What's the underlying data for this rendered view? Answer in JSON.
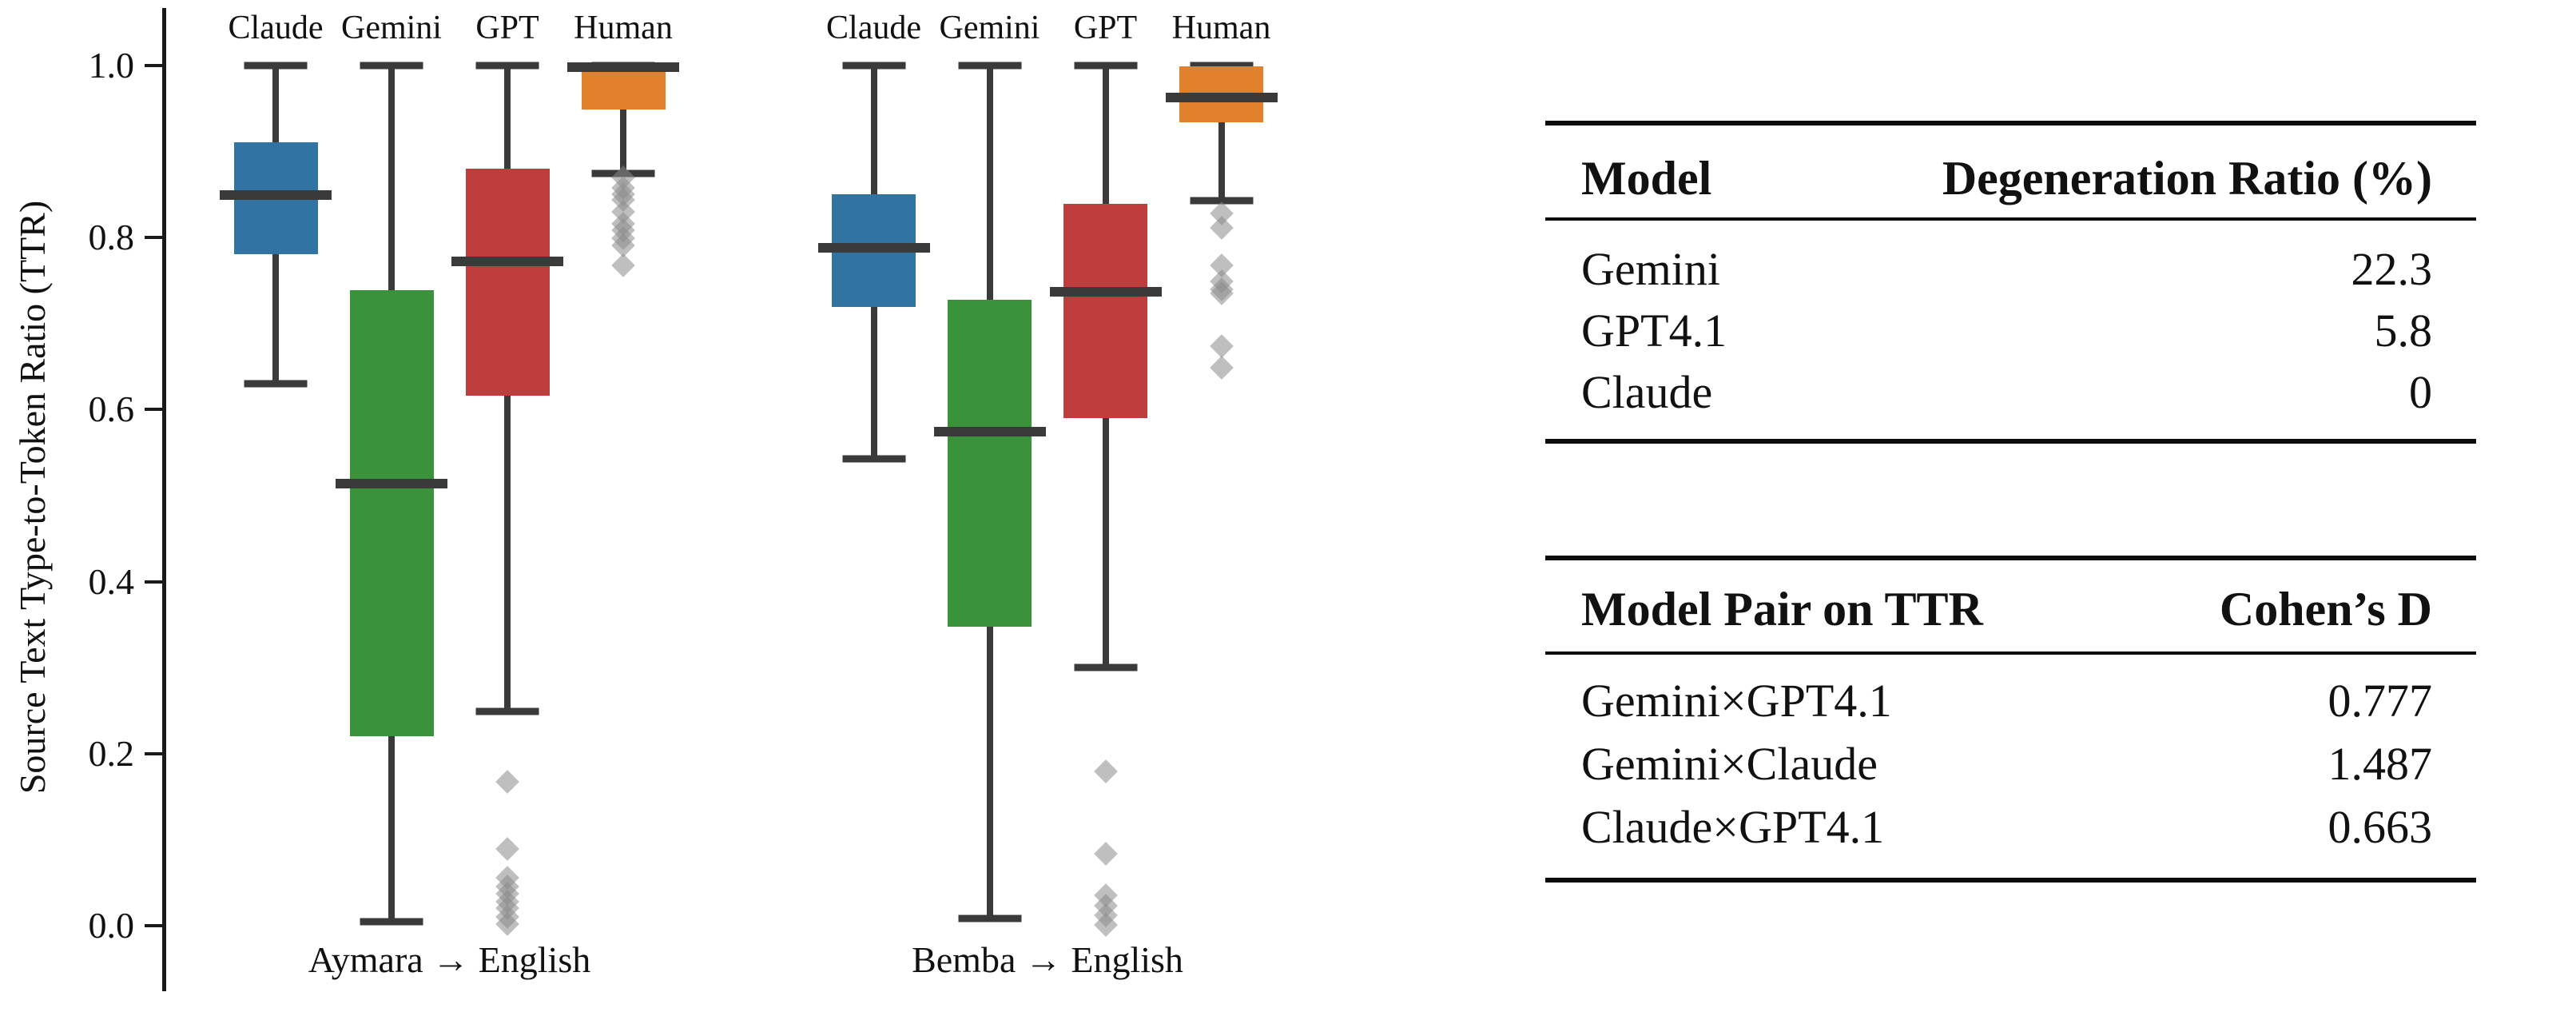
{
  "chart_data": {
    "type": "boxplot",
    "title": "",
    "ylabel": "Source Text Type-to-Token Ratio (TTR)",
    "ylim": [
      0.0,
      1.0
    ],
    "yticks": [
      {
        "value": 1.0,
        "label": "1.0"
      },
      {
        "value": 0.8,
        "label": "0.8"
      },
      {
        "value": 0.6,
        "label": "0.6"
      },
      {
        "value": 0.4,
        "label": "0.4"
      },
      {
        "value": 0.2,
        "label": "0.2"
      },
      {
        "value": 0.0,
        "label": "0.0"
      }
    ],
    "grid": false,
    "legend_position": "none",
    "column_labels": [
      "Claude",
      "Gemini",
      "GPT",
      "Human"
    ],
    "groups": [
      {
        "label": "Aymara → English",
        "boxes": [
          {
            "name": "Claude",
            "color": "#3274a1",
            "whisker_low": 0.63,
            "q1": 0.781,
            "median": 0.849,
            "q3": 0.911,
            "whisker_high": 1.0,
            "outliers": []
          },
          {
            "name": "Gemini",
            "color": "#3a923a",
            "whisker_low": 0.005,
            "q1": 0.22,
            "median": 0.514,
            "q3": 0.739,
            "whisker_high": 1.0,
            "outliers": []
          },
          {
            "name": "GPT",
            "color": "#c03d3e",
            "whisker_low": 0.249,
            "q1": 0.616,
            "median": 0.772,
            "q3": 0.88,
            "whisker_high": 1.0,
            "outliers": [
              0.167,
              0.089,
              0.056,
              0.046,
              0.037,
              0.028,
              0.02,
              0.01,
              0.002
            ]
          },
          {
            "name": "Human",
            "color": "#e1812c",
            "whisker_low": 0.875,
            "q1": 0.949,
            "median": 0.998,
            "q3": 1.0,
            "whisker_high": 1.0,
            "outliers": [
              0.87,
              0.858,
              0.85,
              0.844,
              0.83,
              0.816,
              0.809,
              0.799,
              0.791,
              0.768
            ]
          }
        ]
      },
      {
        "label": "Bemba → English",
        "boxes": [
          {
            "name": "Claude",
            "color": "#3274a1",
            "whisker_low": 0.543,
            "q1": 0.719,
            "median": 0.788,
            "q3": 0.85,
            "whisker_high": 1.0,
            "outliers": []
          },
          {
            "name": "Gemini",
            "color": "#3a923a",
            "whisker_low": 0.008,
            "q1": 0.348,
            "median": 0.574,
            "q3": 0.728,
            "whisker_high": 1.0,
            "outliers": []
          },
          {
            "name": "GPT",
            "color": "#c03d3e",
            "whisker_low": 0.3,
            "q1": 0.59,
            "median": 0.737,
            "q3": 0.839,
            "whisker_high": 1.0,
            "outliers": [
              0.179,
              0.084,
              0.035,
              0.023,
              0.012,
              0.001
            ]
          },
          {
            "name": "Human",
            "color": "#e1812c",
            "whisker_low": 0.843,
            "q1": 0.934,
            "median": 0.963,
            "q3": 0.999,
            "whisker_high": 1.0,
            "outliers": [
              0.828,
              0.811,
              0.768,
              0.749,
              0.74,
              0.735,
              0.674,
              0.649
            ]
          }
        ]
      }
    ]
  },
  "tables": {
    "degeneration": {
      "headers": [
        "Model",
        "Degeneration Ratio (%)"
      ],
      "rows": [
        {
          "label": "Gemini",
          "value": "22.3"
        },
        {
          "label": "GPT4.1",
          "value": "5.8"
        },
        {
          "label": "Claude",
          "value": "0"
        }
      ]
    },
    "cohens_d": {
      "headers": [
        "Model Pair on TTR",
        "Cohen’s D"
      ],
      "rows": [
        {
          "label": "Gemini×GPT4.1",
          "value": "0.777"
        },
        {
          "label": "Gemini×Claude",
          "value": "1.487"
        },
        {
          "label": "Claude×GPT4.1",
          "value": "0.663"
        }
      ]
    }
  },
  "colors": {
    "line": "#3a3a3a",
    "outlier": "#8b8b8b",
    "claude": "#3274a1",
    "gemini": "#3a923a",
    "gpt": "#c03d3e",
    "human": "#e1812c"
  }
}
